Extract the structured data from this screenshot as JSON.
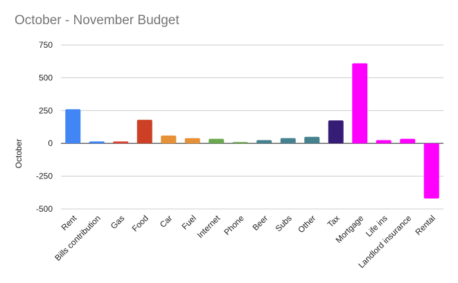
{
  "chart_data": {
    "type": "bar",
    "title": "October - November Budget",
    "ylabel": "October",
    "xlabel": "",
    "ylim": [
      -500,
      750
    ],
    "yticks": [
      750,
      500,
      250,
      0,
      -250,
      -500
    ],
    "grid": true,
    "categories": [
      "Rent",
      "Bills contribution",
      "Gas",
      "Food",
      "Car",
      "Fuel",
      "Internet",
      "Phone",
      "Beer",
      "Subs",
      "Other",
      "Tax",
      "Mortgage",
      "Life ins",
      "Landlord insurance",
      "Rental"
    ],
    "values": [
      260,
      15,
      15,
      180,
      60,
      40,
      35,
      10,
      25,
      40,
      50,
      175,
      610,
      25,
      35,
      -420
    ],
    "colors": [
      "#4285f4",
      "#4285f4",
      "#db4437",
      "#cc4125",
      "#e69138",
      "#e69138",
      "#6aa84f",
      "#6aa84f",
      "#45818e",
      "#45818e",
      "#45818e",
      "#351c75",
      "#ff00ff",
      "#ff00ff",
      "#ff00ff",
      "#ff00ff"
    ]
  }
}
